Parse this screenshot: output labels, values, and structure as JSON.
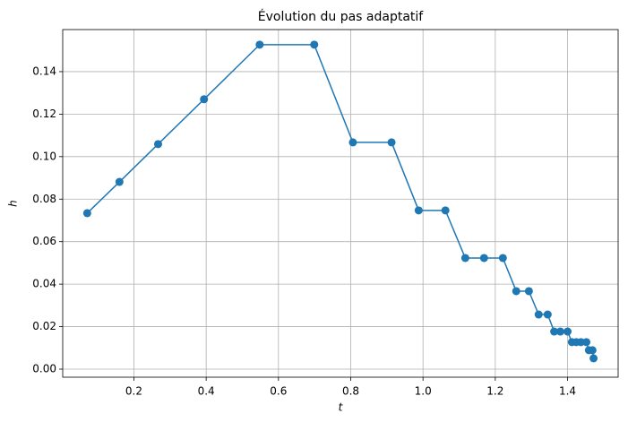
{
  "chart_data": {
    "type": "line",
    "title": "Évolution du pas adaptatif",
    "x_label": "t",
    "y_label": "h",
    "x": [
      0.0708,
      0.16,
      0.267,
      0.394,
      0.548,
      0.699,
      0.806,
      0.913,
      0.988,
      1.062,
      1.117,
      1.169,
      1.221,
      1.258,
      1.293,
      1.32,
      1.345,
      1.363,
      1.38,
      1.4,
      1.412,
      1.424,
      1.437,
      1.452,
      1.459,
      1.469,
      1.472
    ],
    "series": [
      {
        "color": "#1f77b4",
        "values": [
          0.0734,
          0.0881,
          0.1059,
          0.127,
          0.1527,
          0.1527,
          0.1067,
          0.1067,
          0.0747,
          0.0747,
          0.0523,
          0.0523,
          0.0523,
          0.0367,
          0.0367,
          0.0257,
          0.0257,
          0.0177,
          0.0177,
          0.0177,
          0.0127,
          0.0127,
          0.0127,
          0.0127,
          0.0089,
          0.0089,
          0.0051
        ]
      }
    ],
    "xlim": [
      0.003,
      1.54
    ],
    "ylim": [
      -0.0038,
      0.1598
    ],
    "xticks": [
      0.2,
      0.4,
      0.6,
      0.8,
      {
        "value": 1.0,
        "label": "1.0"
      },
      1.2,
      1.4
    ],
    "yticks": [
      {
        "value": 0,
        "label": "0.00"
      },
      0.02,
      0.04,
      0.06,
      0.08,
      {
        "value": 0.1,
        "label": "0.10"
      },
      0.12,
      0.14
    ],
    "grid": true
  }
}
